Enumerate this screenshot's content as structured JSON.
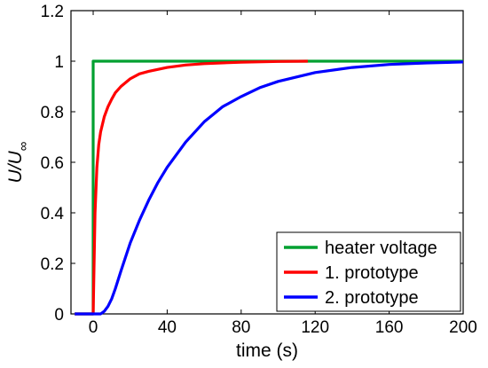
{
  "chart_data": {
    "type": "line",
    "title": "",
    "xlabel": "time (s)",
    "ylabel": "U/U∞",
    "ylabel_main": "U/U",
    "ylabel_sub": "∞",
    "xlim": [
      -12,
      200
    ],
    "ylim": [
      0,
      1.2
    ],
    "xticks": [
      0,
      40,
      80,
      120,
      160,
      200
    ],
    "yticks": [
      0,
      0.2,
      0.4,
      0.6,
      0.8,
      1,
      1.2
    ],
    "xtick_labels": [
      "0",
      "40",
      "80",
      "120",
      "160",
      "200"
    ],
    "ytick_labels": [
      "0",
      "0.2",
      "0.4",
      "0.6",
      "0.8",
      "1",
      "1.2"
    ],
    "grid": false,
    "legend_position": "bottom-right",
    "series": [
      {
        "name": "heater voltage",
        "color": "#00a030",
        "x": [
          -10,
          0,
          0,
          200
        ],
        "y": [
          0,
          0,
          1,
          1
        ]
      },
      {
        "name": "1. prototype",
        "color": "#ff0000",
        "x": [
          -10,
          0,
          1,
          2,
          3,
          4,
          6,
          8,
          10,
          12,
          15,
          20,
          25,
          30,
          40,
          50,
          60,
          80,
          100,
          116
        ],
        "y": [
          0,
          0,
          0.4,
          0.58,
          0.67,
          0.72,
          0.78,
          0.82,
          0.85,
          0.875,
          0.9,
          0.93,
          0.95,
          0.96,
          0.975,
          0.985,
          0.99,
          0.996,
          0.999,
          1.0
        ]
      },
      {
        "name": "2. prototype",
        "color": "#0000ff",
        "x": [
          -10,
          4,
          6,
          8,
          10,
          12,
          15,
          20,
          25,
          30,
          35,
          40,
          50,
          60,
          70,
          80,
          90,
          100,
          120,
          140,
          160,
          180,
          200
        ],
        "y": [
          0,
          0,
          0.01,
          0.03,
          0.06,
          0.1,
          0.17,
          0.28,
          0.37,
          0.45,
          0.52,
          0.58,
          0.68,
          0.76,
          0.82,
          0.86,
          0.895,
          0.92,
          0.955,
          0.975,
          0.987,
          0.993,
          0.997
        ]
      }
    ]
  }
}
